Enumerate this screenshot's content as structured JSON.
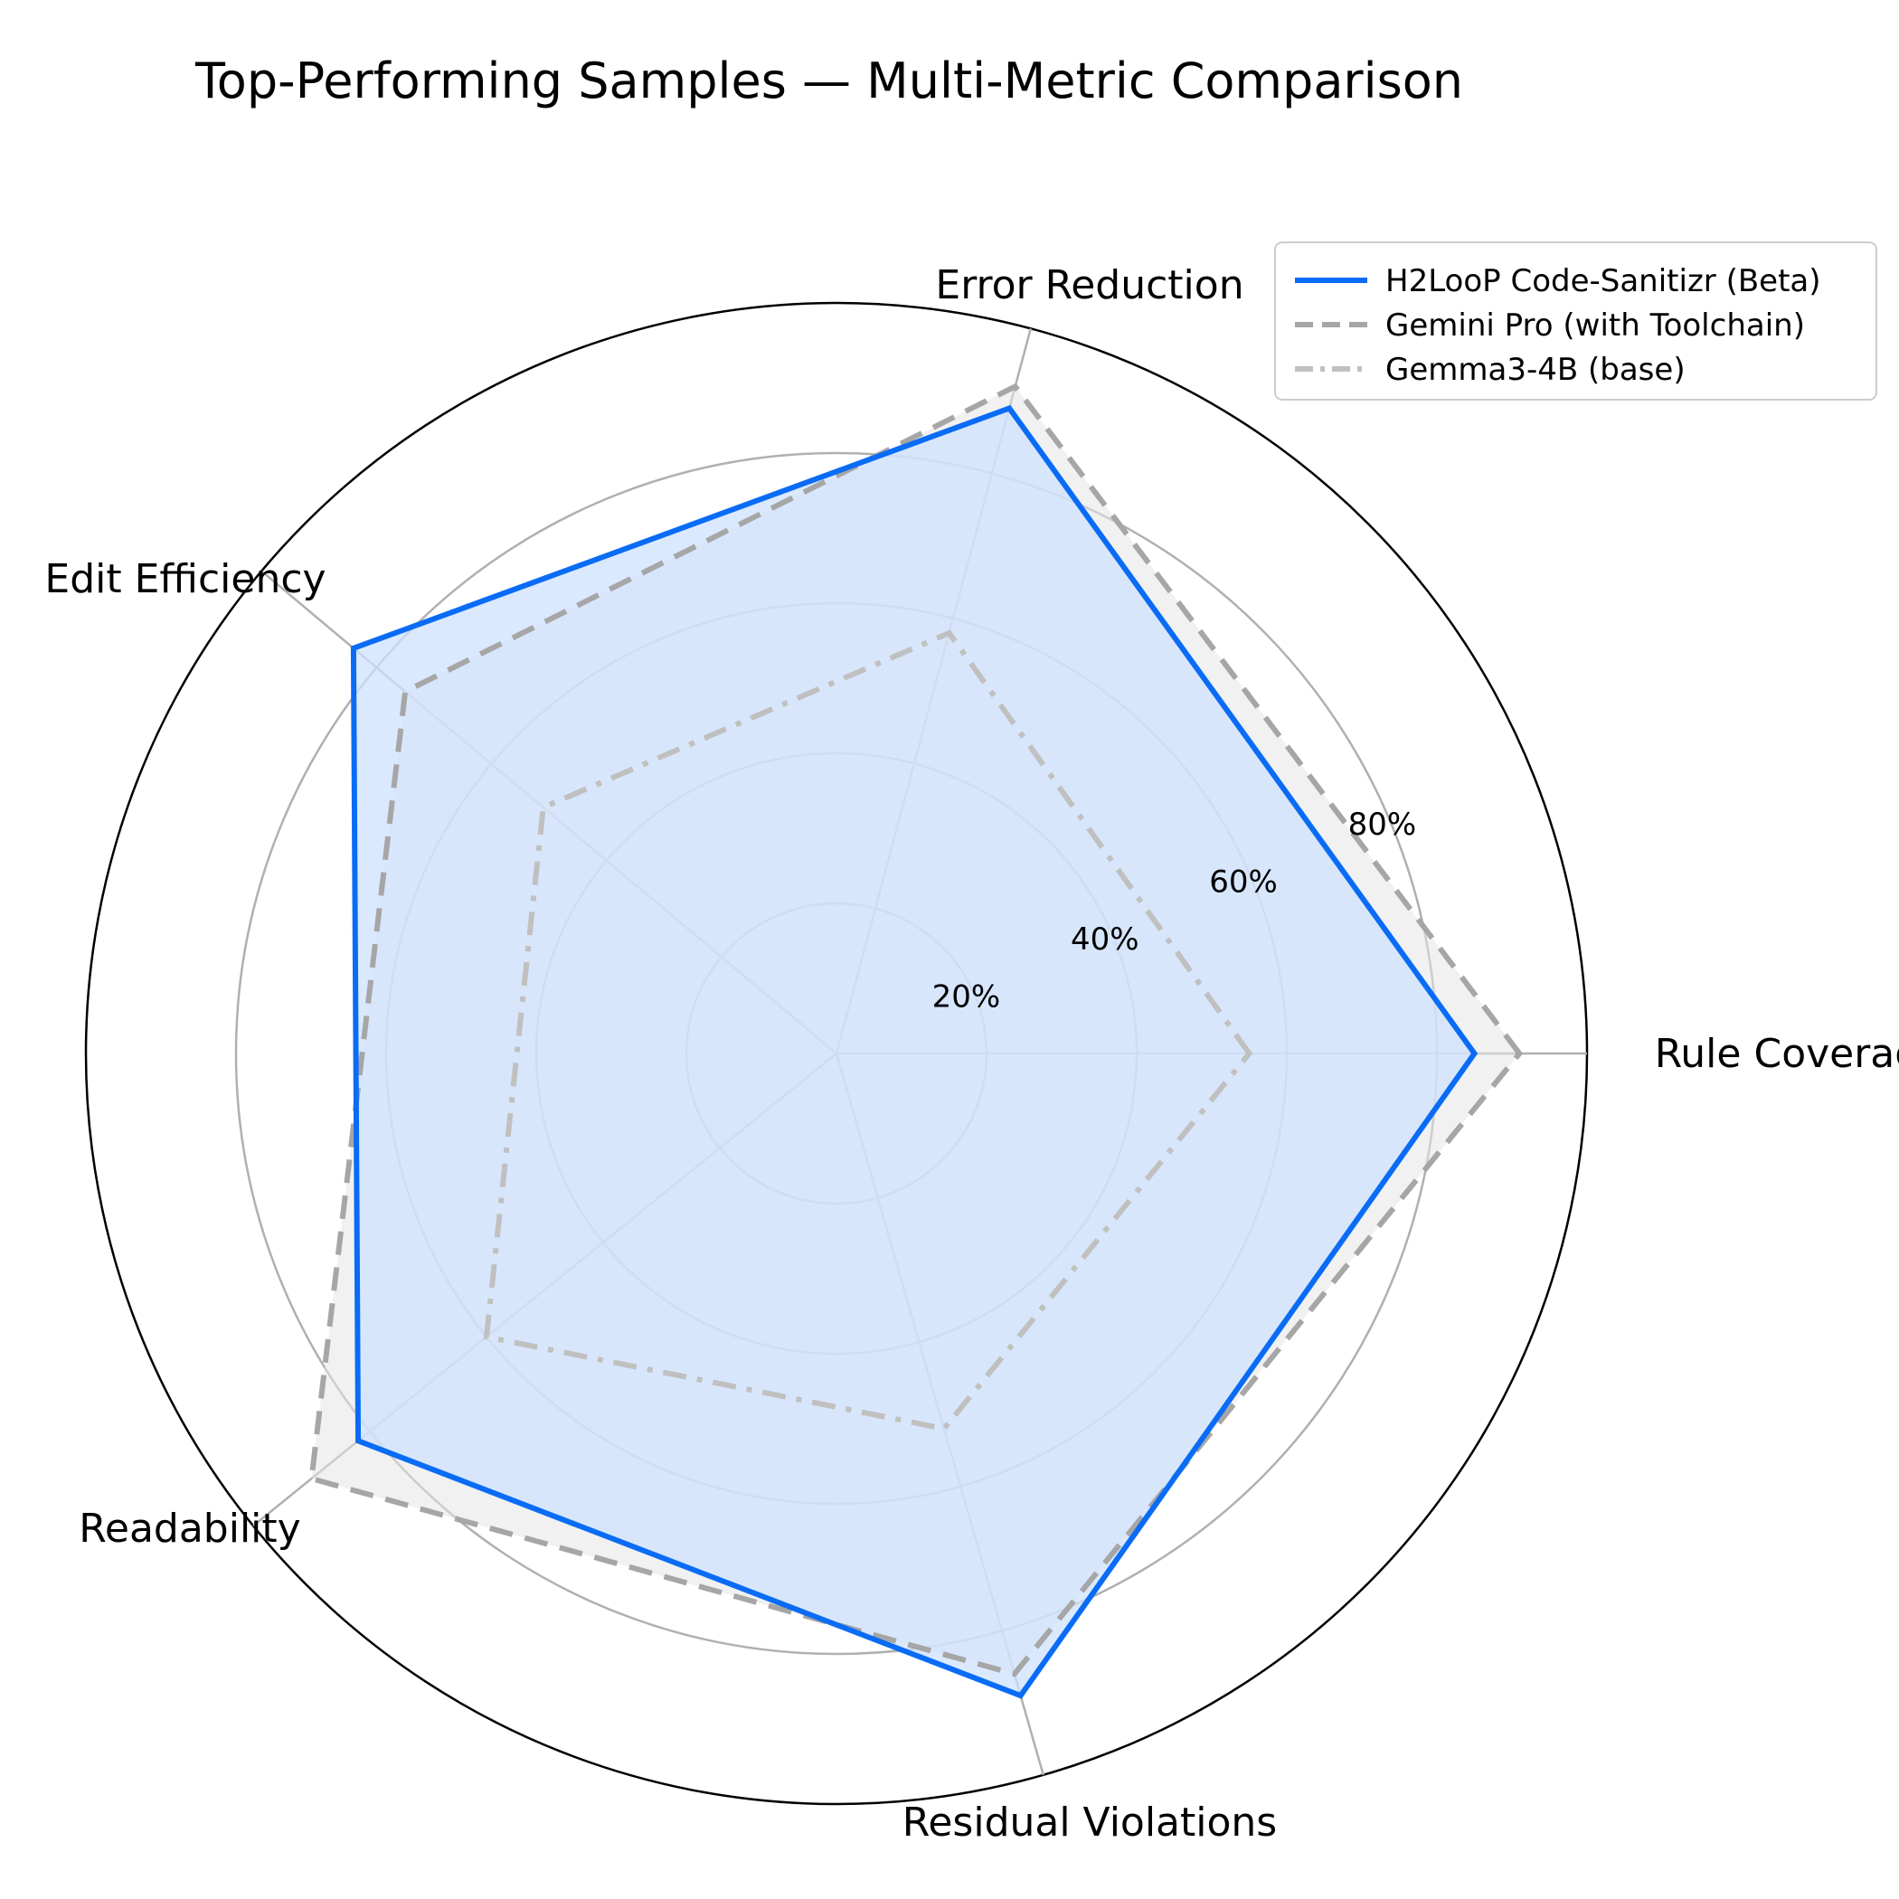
{
  "chart_data": {
    "type": "radar",
    "title": "Top-Performing Samples — Multi-Metric Comparison",
    "axes": [
      "Rule Coverage",
      "Error Reduction",
      "Edit Efficiency",
      "Readability",
      "Residual Violations"
    ],
    "rlim": [
      0,
      100
    ],
    "r_ticks": [
      20,
      40,
      60,
      80
    ],
    "r_tick_labels": [
      "20%",
      "40%",
      "60%",
      "80%"
    ],
    "grid": true,
    "legend_position": "top-right",
    "series": [
      {
        "name": "H2LooP Code-Sanitizr (Beta)",
        "values": [
          85,
          89,
          84,
          82,
          89
        ],
        "color": "#0a6cf5",
        "line_style": "solid",
        "fill": "#cfe1ff"
      },
      {
        "name": "Gemini Pro (with Toolchain)",
        "values": [
          91,
          92,
          75,
          90,
          86
        ],
        "color": "#a6a6a6",
        "line_style": "dashed",
        "fill": "#e6e6e6"
      },
      {
        "name": "Gemma3-4B (base)",
        "values": [
          55,
          58,
          51,
          60,
          52
        ],
        "color": "#c0c0c0",
        "line_style": "dashdot",
        "fill": "none"
      }
    ]
  }
}
